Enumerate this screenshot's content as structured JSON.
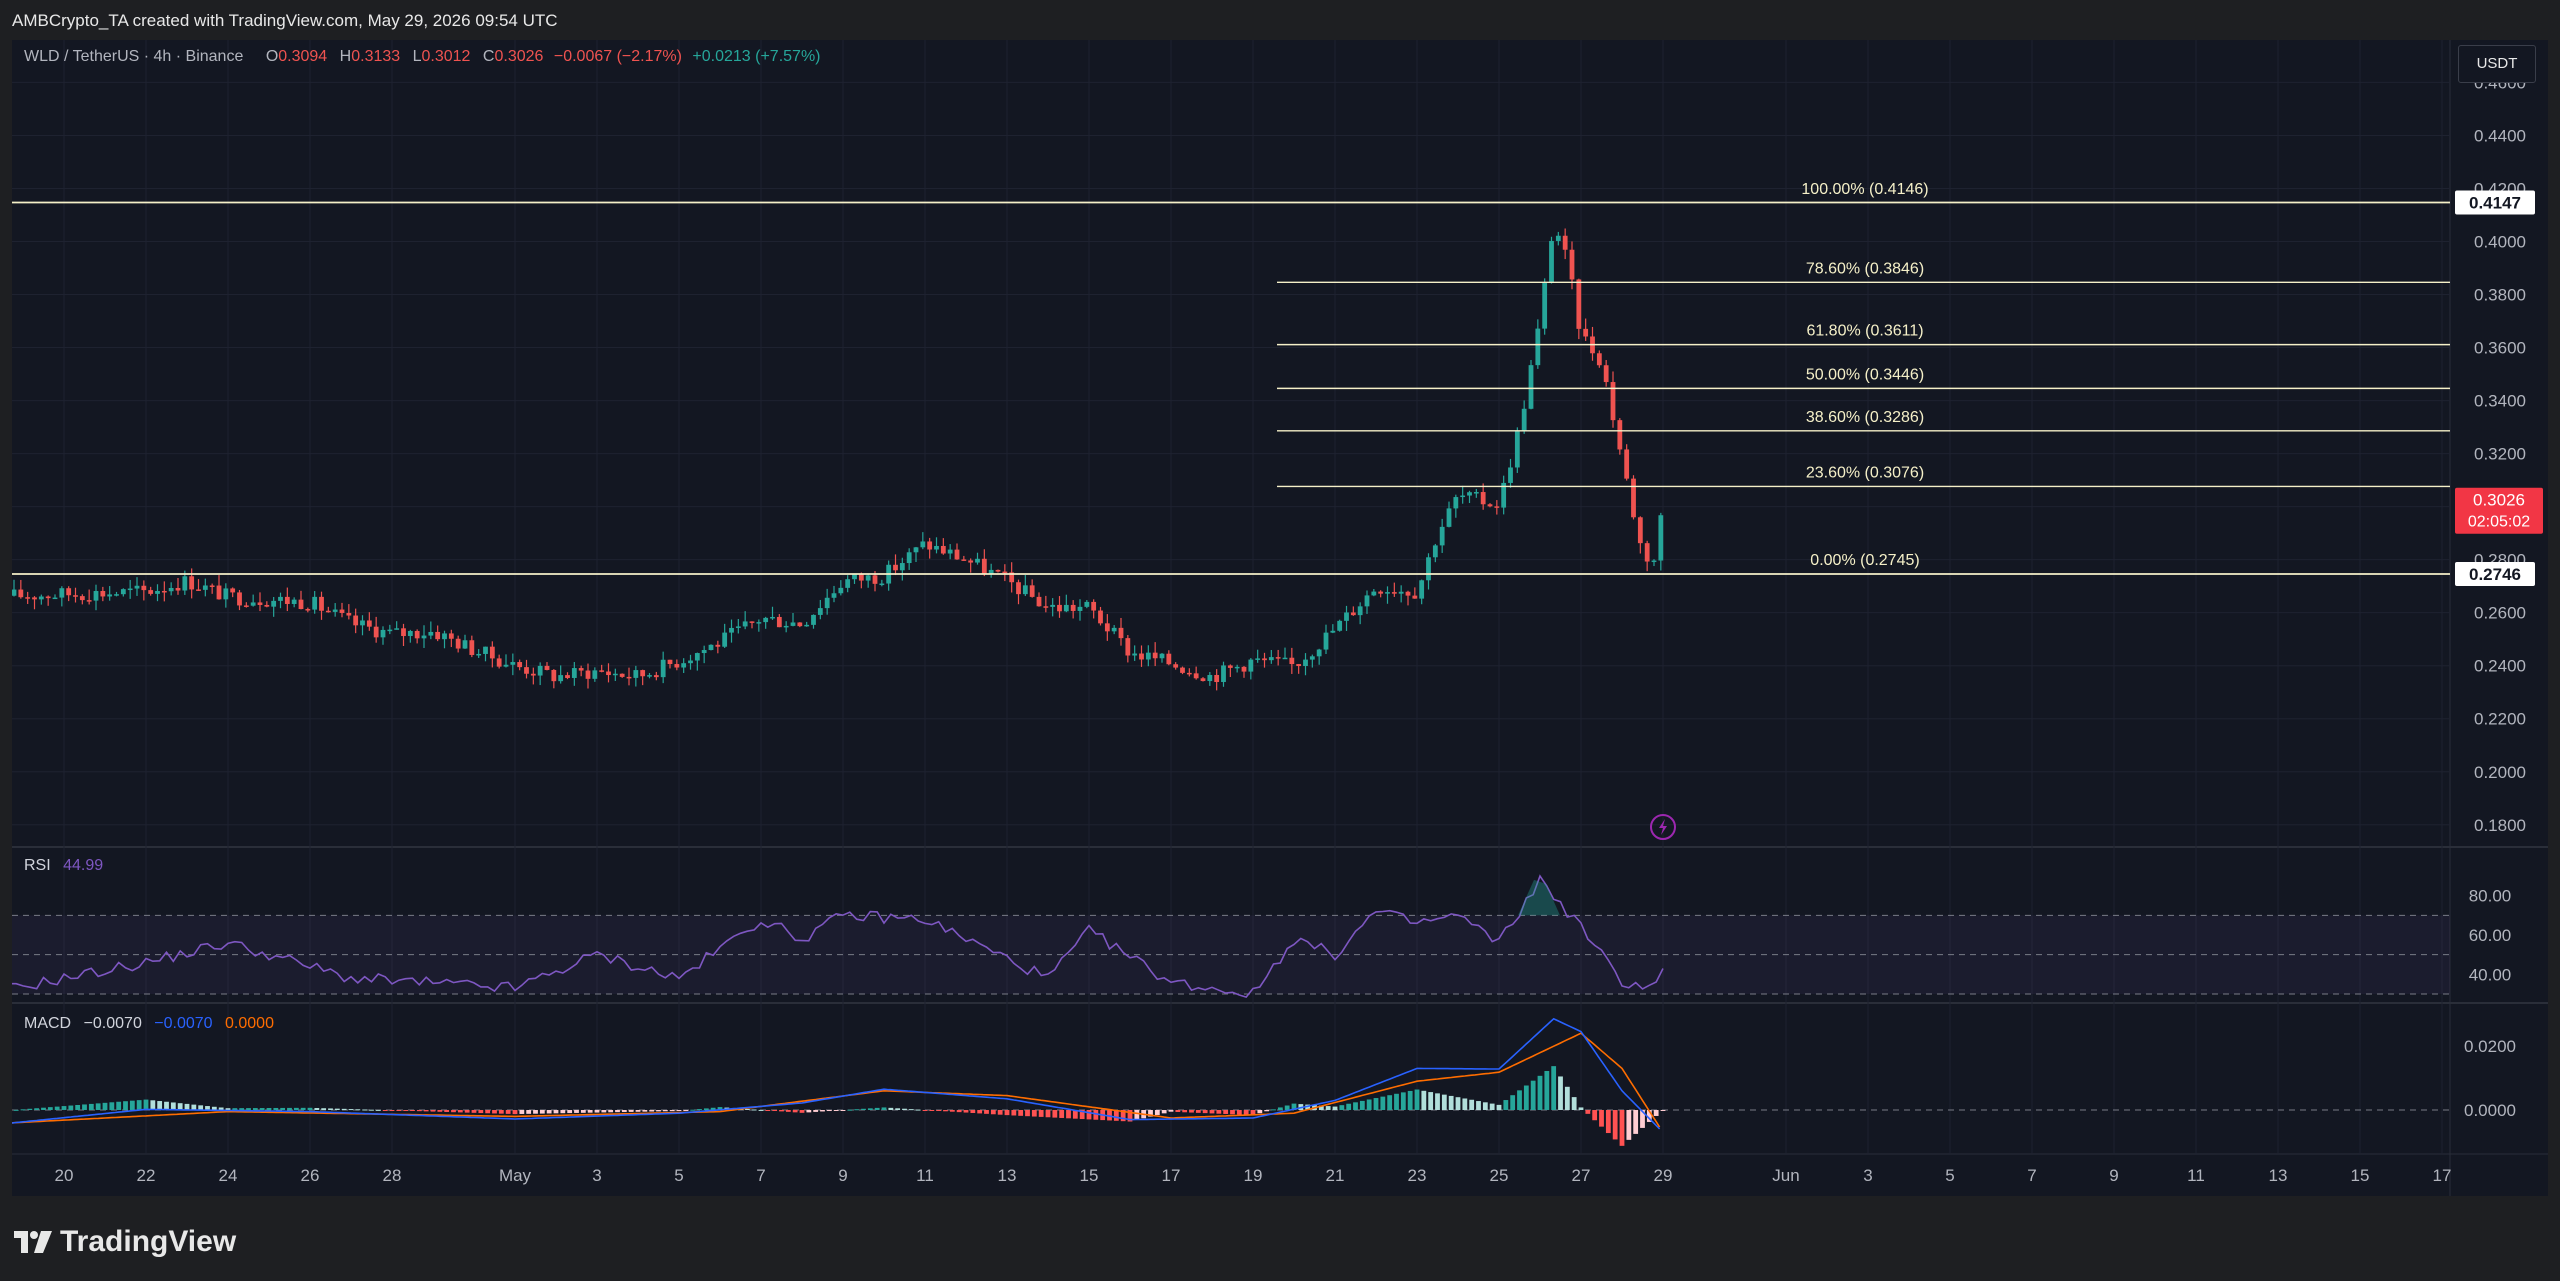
{
  "header": {
    "text": "AMBCrypto_TA created with TradingView.com, May 29, 2026 09:54 UTC"
  },
  "legend": {
    "symbol": "WLD / TetherUS · 4h · Binance",
    "o_label": "O",
    "o": "0.3094",
    "h_label": "H",
    "h": "0.3133",
    "l_label": "L",
    "l": "0.3012",
    "c_label": "C",
    "c": "0.3026",
    "change": "−0.0067 (−2.17%)",
    "extra": "+0.0213 (+7.57%)"
  },
  "unit": "USDT",
  "rsi_legend": {
    "name": "RSI",
    "value": "44.99"
  },
  "macd_legend": {
    "name": "MACD",
    "macd": "−0.0070",
    "signal": "−0.0070",
    "hist": "0.0000"
  },
  "footer": {
    "brand": "TradingView"
  },
  "colors": {
    "bull": "#26a69a",
    "bear": "#ef5350",
    "rsi": "#7e57c2",
    "macd": "#2962ff",
    "signal": "#ff6d00",
    "fib": "#f5f0c8"
  },
  "chart_data": [
    {
      "type": "candlestick",
      "title": "WLD / TetherUS · 4h · Binance",
      "price_axis": {
        "ticks": [
          "0.4600",
          "0.4400",
          "0.4200",
          "0.4000",
          "0.3800",
          "0.3600",
          "0.3400",
          "0.3200",
          "0.3000",
          "0.2800",
          "0.2600",
          "0.2400",
          "0.2200",
          "0.2000",
          "0.1800"
        ],
        "range": [
          0.172,
          0.476
        ]
      },
      "time_axis": {
        "ticks": [
          "20",
          "22",
          "24",
          "26",
          "28",
          "May",
          "3",
          "5",
          "7",
          "9",
          "11",
          "13",
          "15",
          "17",
          "19",
          "21",
          "23",
          "25",
          "27",
          "29",
          "Jun",
          "3",
          "5",
          "7",
          "9",
          "11",
          "13",
          "15",
          "17"
        ]
      },
      "price_labels": [
        {
          "value": 0.4147,
          "text": "0.4147",
          "style": "white"
        },
        {
          "value": 0.2746,
          "text": "0.2746",
          "style": "white"
        },
        {
          "value": 0.3026,
          "text": "0.3026",
          "sub": "02:05:02",
          "style": "red"
        }
      ],
      "fibonacci": [
        {
          "level": "100.00%",
          "price": 0.4146,
          "label": "100.00% (0.4146)"
        },
        {
          "level": "78.60%",
          "price": 0.3846,
          "label": "78.60% (0.3846)"
        },
        {
          "level": "61.80%",
          "price": 0.3611,
          "label": "61.80% (0.3611)"
        },
        {
          "level": "50.00%",
          "price": 0.3446,
          "label": "50.00% (0.3446)"
        },
        {
          "level": "38.60%",
          "price": 0.3286,
          "label": "38.60% (0.3286)"
        },
        {
          "level": "23.60%",
          "price": 0.3076,
          "label": "23.60% (0.3076)"
        },
        {
          "level": "0.00%",
          "price": 0.2745,
          "label": "0.00% (0.2745)"
        }
      ],
      "horizontal_lines": [
        0.4147,
        0.2746
      ],
      "close_path": [
        {
          "date": "Apr 18",
          "close": 0.266
        },
        {
          "date": "Apr 20",
          "close": 0.267
        },
        {
          "date": "Apr 22",
          "close": 0.268
        },
        {
          "date": "Apr 23",
          "close": 0.272
        },
        {
          "date": "Apr 24",
          "close": 0.266
        },
        {
          "date": "Apr 26",
          "close": 0.264
        },
        {
          "date": "Apr 27",
          "close": 0.256
        },
        {
          "date": "Apr 28",
          "close": 0.252
        },
        {
          "date": "Apr 29",
          "close": 0.253
        },
        {
          "date": "Apr 30",
          "close": 0.246
        },
        {
          "date": "May 1",
          "close": 0.24
        },
        {
          "date": "May 2",
          "close": 0.236
        },
        {
          "date": "May 3",
          "close": 0.238
        },
        {
          "date": "May 4",
          "close": 0.236
        },
        {
          "date": "May 5",
          "close": 0.242
        },
        {
          "date": "May 6",
          "close": 0.249
        },
        {
          "date": "May 7",
          "close": 0.258
        },
        {
          "date": "May 8",
          "close": 0.256
        },
        {
          "date": "May 9",
          "close": 0.272
        },
        {
          "date": "May 10",
          "close": 0.274
        },
        {
          "date": "May 11",
          "close": 0.286
        },
        {
          "date": "May 12",
          "close": 0.28
        },
        {
          "date": "May 13",
          "close": 0.272
        },
        {
          "date": "May 14",
          "close": 0.262
        },
        {
          "date": "May 15",
          "close": 0.262
        },
        {
          "date": "May 16",
          "close": 0.245
        },
        {
          "date": "May 17",
          "close": 0.241
        },
        {
          "date": "May 18",
          "close": 0.236
        },
        {
          "date": "May 19",
          "close": 0.242
        },
        {
          "date": "May 20",
          "close": 0.24
        },
        {
          "date": "May 21",
          "close": 0.254
        },
        {
          "date": "May 22",
          "close": 0.27
        },
        {
          "date": "May 23",
          "close": 0.268
        },
        {
          "date": "May 23 12:00",
          "close": 0.29
        },
        {
          "date": "May 24",
          "close": 0.304
        },
        {
          "date": "May 25",
          "close": 0.301
        },
        {
          "date": "May 25 12:00",
          "close": 0.33
        },
        {
          "date": "May 26",
          "close": 0.37
        },
        {
          "date": "May 26 08:00",
          "close": 0.408
        },
        {
          "date": "May 26 16:00",
          "close": 0.392
        },
        {
          "date": "May 27",
          "close": 0.365
        },
        {
          "date": "May 27 12:00",
          "close": 0.355
        },
        {
          "date": "May 28",
          "close": 0.318
        },
        {
          "date": "May 28 12:00",
          "close": 0.282
        },
        {
          "date": "May 28 20:00",
          "close": 0.28
        },
        {
          "date": "May 29",
          "close": 0.303
        }
      ]
    },
    {
      "type": "line",
      "title": "RSI",
      "value": 44.99,
      "y_ticks": [
        "80.00",
        "60.00",
        "40.00"
      ],
      "bands": [
        70,
        50,
        30
      ],
      "path": [
        {
          "date": "Apr 18",
          "rsi": 30
        },
        {
          "date": "Apr 22",
          "rsi": 46
        },
        {
          "date": "Apr 24",
          "rsi": 56
        },
        {
          "date": "Apr 27",
          "rsi": 38
        },
        {
          "date": "May 1",
          "rsi": 33
        },
        {
          "date": "May 3",
          "rsi": 50
        },
        {
          "date": "May 5",
          "rsi": 38
        },
        {
          "date": "May 7",
          "rsi": 68
        },
        {
          "date": "May 8",
          "rsi": 58
        },
        {
          "date": "May 9",
          "rsi": 70
        },
        {
          "date": "May 11",
          "rsi": 68
        },
        {
          "date": "May 14",
          "rsi": 38
        },
        {
          "date": "May 15",
          "rsi": 62
        },
        {
          "date": "May 17",
          "rsi": 36
        },
        {
          "date": "May 19",
          "rsi": 30
        },
        {
          "date": "May 20",
          "rsi": 58
        },
        {
          "date": "May 21",
          "rsi": 50
        },
        {
          "date": "May 22",
          "rsi": 72
        },
        {
          "date": "May 23",
          "rsi": 66
        },
        {
          "date": "May 24",
          "rsi": 70
        },
        {
          "date": "May 25",
          "rsi": 56
        },
        {
          "date": "May 26",
          "rsi": 88
        },
        {
          "date": "May 27",
          "rsi": 64
        },
        {
          "date": "May 28",
          "rsi": 36
        },
        {
          "date": "May 28 20:00",
          "rsi": 34
        },
        {
          "date": "May 29",
          "rsi": 45
        }
      ]
    },
    {
      "type": "line",
      "title": "MACD",
      "values": {
        "macd": -0.007,
        "signal": -0.007,
        "histogram": 0.0
      },
      "y_ticks": [
        "0.0200",
        "0.0000"
      ],
      "macd_path": [
        {
          "date": "Apr 18",
          "v": -0.005
        },
        {
          "date": "Apr 22",
          "v": 0.0002
        },
        {
          "date": "Apr 26",
          "v": -0.0005
        },
        {
          "date": "May 1",
          "v": -0.0028
        },
        {
          "date": "May 5",
          "v": -0.001
        },
        {
          "date": "May 8",
          "v": 0.0022
        },
        {
          "date": "May 10",
          "v": 0.0065
        },
        {
          "date": "May 13",
          "v": 0.0035
        },
        {
          "date": "May 16",
          "v": -0.003
        },
        {
          "date": "May 19",
          "v": -0.0025
        },
        {
          "date": "May 21",
          "v": 0.003
        },
        {
          "date": "May 23",
          "v": 0.013
        },
        {
          "date": "May 25",
          "v": 0.0128
        },
        {
          "date": "May 26 08:00",
          "v": 0.0285
        },
        {
          "date": "May 27",
          "v": 0.0245
        },
        {
          "date": "May 28",
          "v": 0.006
        },
        {
          "date": "May 29",
          "v": -0.007
        }
      ],
      "signal_path": [
        {
          "date": "Apr 18",
          "v": -0.0045
        },
        {
          "date": "Apr 24",
          "v": -0.0005
        },
        {
          "date": "May 1",
          "v": -0.002
        },
        {
          "date": "May 6",
          "v": -0.0005
        },
        {
          "date": "May 10",
          "v": 0.006
        },
        {
          "date": "May 13",
          "v": 0.0045
        },
        {
          "date": "May 17",
          "v": -0.0025
        },
        {
          "date": "May 20",
          "v": -0.001
        },
        {
          "date": "May 23",
          "v": 0.009
        },
        {
          "date": "May 25",
          "v": 0.0118
        },
        {
          "date": "May 27",
          "v": 0.024
        },
        {
          "date": "May 28",
          "v": 0.013
        },
        {
          "date": "May 29",
          "v": -0.007
        }
      ]
    }
  ]
}
